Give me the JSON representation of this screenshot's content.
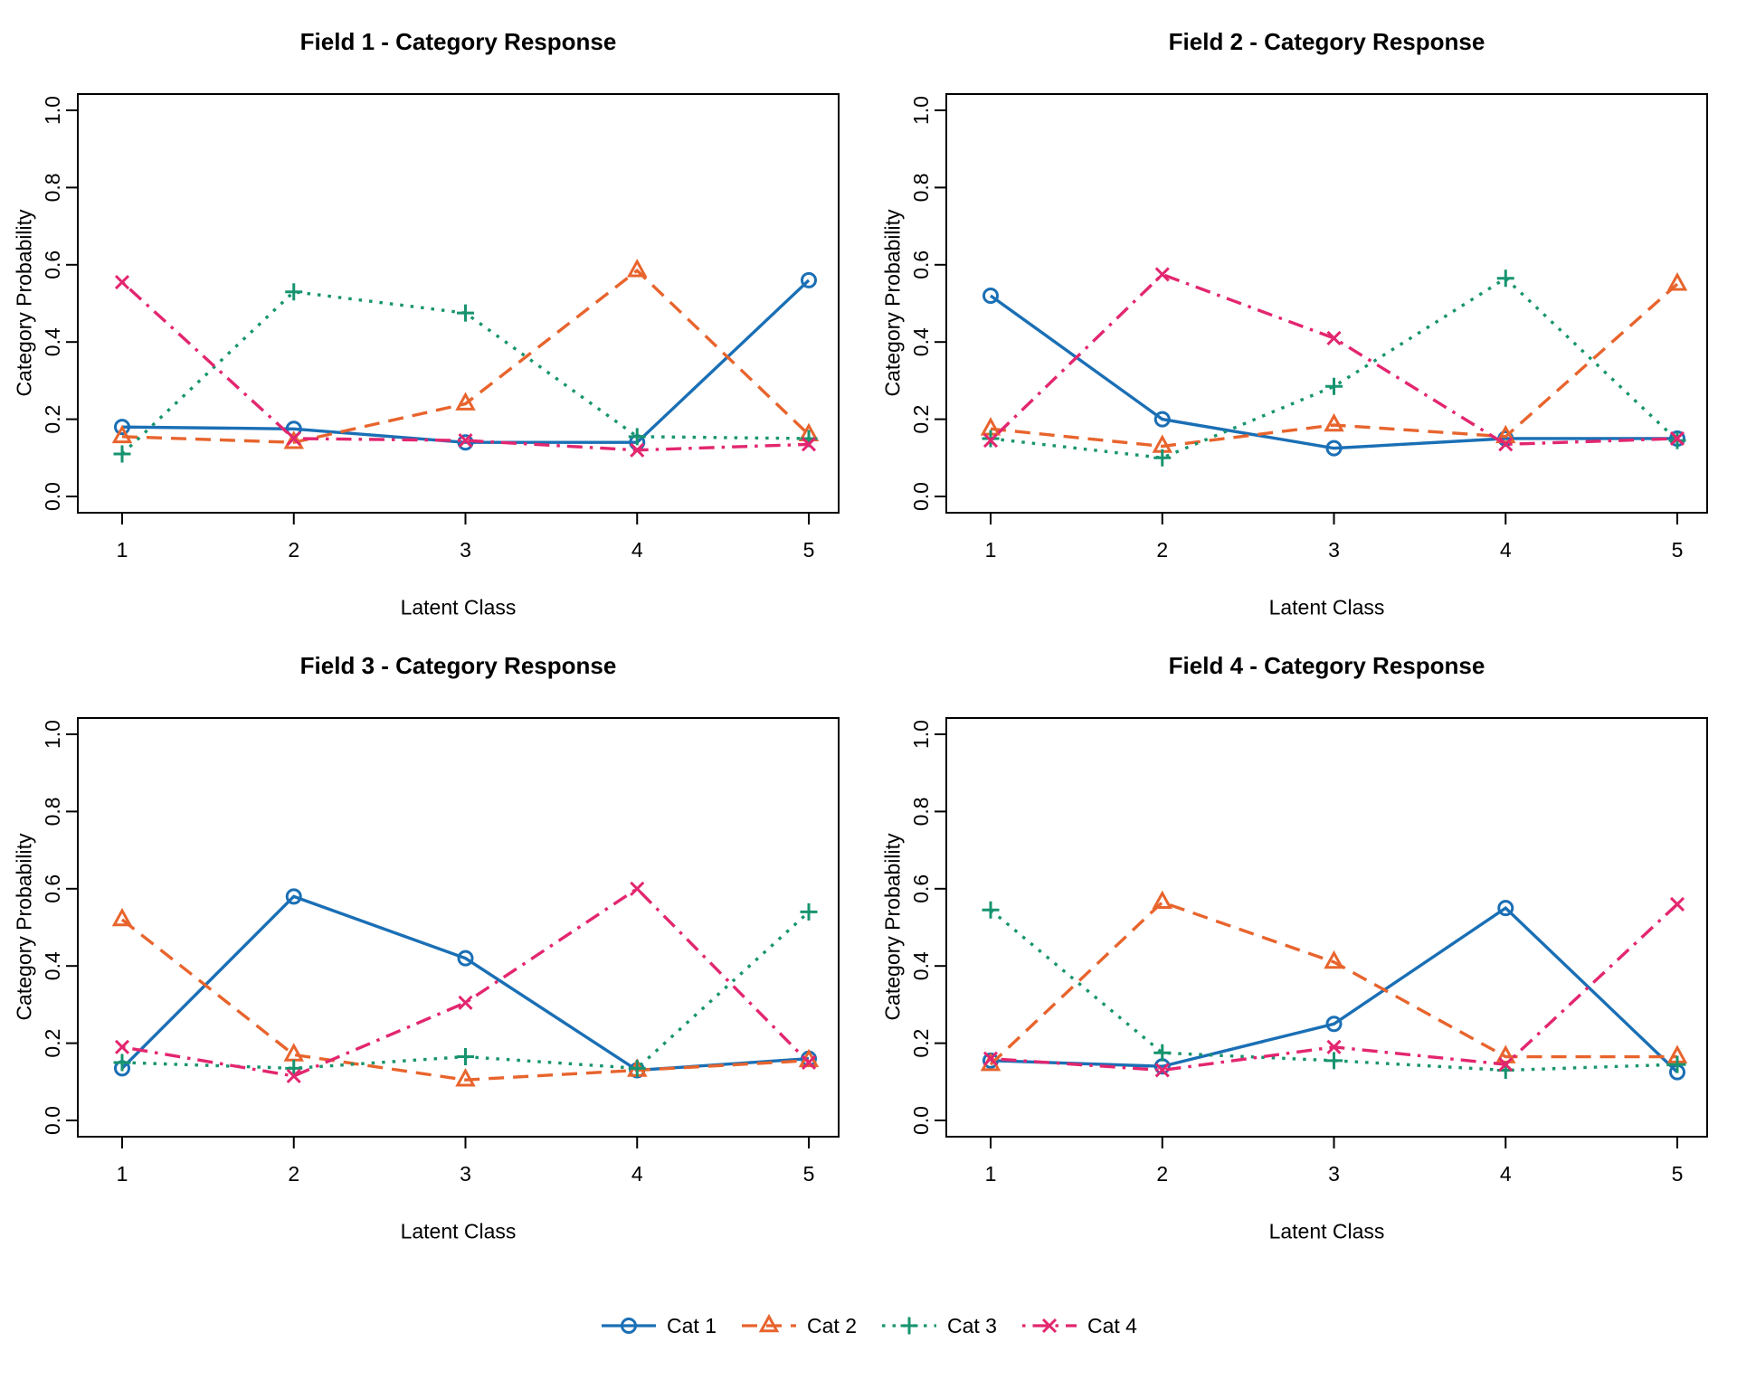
{
  "colors": {
    "cat1": "#1A6FB5",
    "cat2": "#E8642D",
    "cat3": "#17946F",
    "cat4": "#E3266F"
  },
  "axis": {
    "xlabel": "Latent Class",
    "ylabel": "Category Probability",
    "xticks": [
      "1",
      "2",
      "3",
      "4",
      "5"
    ],
    "yticks": [
      "0.0",
      "0.2",
      "0.4",
      "0.6",
      "0.8",
      "1.0"
    ],
    "ylim": [
      0,
      1
    ]
  },
  "legend": [
    {
      "label": "Cat 1",
      "color_key": "cat1",
      "marker": "circle",
      "linestyle": "solid"
    },
    {
      "label": "Cat 2",
      "color_key": "cat2",
      "marker": "triangle",
      "linestyle": "dashed"
    },
    {
      "label": "Cat 3",
      "color_key": "cat3",
      "marker": "plus",
      "linestyle": "dotted"
    },
    {
      "label": "Cat 4",
      "color_key": "cat4",
      "marker": "x",
      "linestyle": "dashdot"
    }
  ],
  "chart_data": [
    {
      "type": "line",
      "title": "Field 1 - Category Response",
      "xlabel": "Latent Class",
      "ylabel": "Category Probability",
      "x": [
        1,
        2,
        3,
        4,
        5
      ],
      "ylim": [
        0,
        1
      ],
      "grid": false,
      "series": [
        {
          "name": "Cat 1",
          "color_key": "cat1",
          "marker": "circle",
          "linestyle": "solid",
          "values": [
            0.18,
            0.175,
            0.14,
            0.14,
            0.56
          ]
        },
        {
          "name": "Cat 2",
          "color_key": "cat2",
          "marker": "triangle",
          "linestyle": "dashed",
          "values": [
            0.155,
            0.14,
            0.24,
            0.585,
            0.16
          ]
        },
        {
          "name": "Cat 3",
          "color_key": "cat3",
          "marker": "plus",
          "linestyle": "dotted",
          "values": [
            0.11,
            0.53,
            0.475,
            0.155,
            0.15
          ]
        },
        {
          "name": "Cat 4",
          "color_key": "cat4",
          "marker": "x",
          "linestyle": "dashdot",
          "values": [
            0.555,
            0.15,
            0.145,
            0.12,
            0.135
          ]
        }
      ]
    },
    {
      "type": "line",
      "title": "Field 2 - Category Response",
      "xlabel": "Latent Class",
      "ylabel": "Category Probability",
      "x": [
        1,
        2,
        3,
        4,
        5
      ],
      "ylim": [
        0,
        1
      ],
      "grid": false,
      "series": [
        {
          "name": "Cat 1",
          "color_key": "cat1",
          "marker": "circle",
          "linestyle": "solid",
          "values": [
            0.52,
            0.2,
            0.125,
            0.15,
            0.15
          ]
        },
        {
          "name": "Cat 2",
          "color_key": "cat2",
          "marker": "triangle",
          "linestyle": "dashed",
          "values": [
            0.175,
            0.13,
            0.185,
            0.155,
            0.55
          ]
        },
        {
          "name": "Cat 3",
          "color_key": "cat3",
          "marker": "plus",
          "linestyle": "dotted",
          "values": [
            0.15,
            0.1,
            0.285,
            0.565,
            0.145
          ]
        },
        {
          "name": "Cat 4",
          "color_key": "cat4",
          "marker": "x",
          "linestyle": "dashdot",
          "values": [
            0.145,
            0.575,
            0.41,
            0.135,
            0.15
          ]
        }
      ]
    },
    {
      "type": "line",
      "title": "Field 3 - Category Response",
      "xlabel": "Latent Class",
      "ylabel": "Category Probability",
      "x": [
        1,
        2,
        3,
        4,
        5
      ],
      "ylim": [
        0,
        1
      ],
      "grid": false,
      "series": [
        {
          "name": "Cat 1",
          "color_key": "cat1",
          "marker": "circle",
          "linestyle": "solid",
          "values": [
            0.135,
            0.58,
            0.42,
            0.13,
            0.16
          ]
        },
        {
          "name": "Cat 2",
          "color_key": "cat2",
          "marker": "triangle",
          "linestyle": "dashed",
          "values": [
            0.52,
            0.17,
            0.105,
            0.13,
            0.155
          ]
        },
        {
          "name": "Cat 3",
          "color_key": "cat3",
          "marker": "plus",
          "linestyle": "dotted",
          "values": [
            0.15,
            0.135,
            0.165,
            0.135,
            0.54
          ]
        },
        {
          "name": "Cat 4",
          "color_key": "cat4",
          "marker": "x",
          "linestyle": "dashdot",
          "values": [
            0.19,
            0.115,
            0.305,
            0.6,
            0.15
          ]
        }
      ]
    },
    {
      "type": "line",
      "title": "Field 4 - Category Response",
      "xlabel": "Latent Class",
      "ylabel": "Category Probability",
      "x": [
        1,
        2,
        3,
        4,
        5
      ],
      "ylim": [
        0,
        1
      ],
      "grid": false,
      "series": [
        {
          "name": "Cat 1",
          "color_key": "cat1",
          "marker": "circle",
          "linestyle": "solid",
          "values": [
            0.155,
            0.14,
            0.25,
            0.55,
            0.125
          ]
        },
        {
          "name": "Cat 2",
          "color_key": "cat2",
          "marker": "triangle",
          "linestyle": "dashed",
          "values": [
            0.145,
            0.565,
            0.41,
            0.165,
            0.165
          ]
        },
        {
          "name": "Cat 3",
          "color_key": "cat3",
          "marker": "plus",
          "linestyle": "dotted",
          "values": [
            0.545,
            0.175,
            0.155,
            0.13,
            0.145
          ]
        },
        {
          "name": "Cat 4",
          "color_key": "cat4",
          "marker": "x",
          "linestyle": "dashdot",
          "values": [
            0.16,
            0.13,
            0.19,
            0.145,
            0.56
          ]
        }
      ]
    }
  ]
}
